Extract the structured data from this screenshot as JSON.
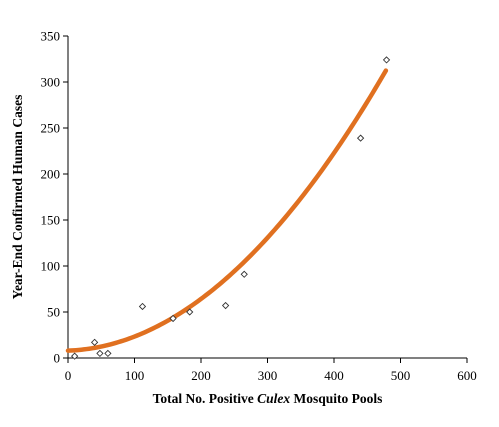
{
  "chart_data": {
    "type": "scatter",
    "title": "",
    "xlabel_parts": [
      {
        "text": "Total No. Positive ",
        "italic": false
      },
      {
        "text": "Culex",
        "italic": true
      },
      {
        "text": " Mosquito Pools",
        "italic": false
      }
    ],
    "ylabel": "Year-End Confirmed Human Cases",
    "xlim": [
      0,
      600
    ],
    "ylim": [
      0,
      350
    ],
    "xticks": [
      0,
      100,
      200,
      300,
      400,
      500,
      600
    ],
    "yticks": [
      0,
      50,
      100,
      150,
      200,
      250,
      300,
      350
    ],
    "grid": false,
    "legend": "none",
    "series": [
      {
        "kind": "points",
        "marker": "diamond",
        "points": [
          {
            "x": 10,
            "y": 2
          },
          {
            "x": 40,
            "y": 17
          },
          {
            "x": 48,
            "y": 5
          },
          {
            "x": 60,
            "y": 5
          },
          {
            "x": 112,
            "y": 56
          },
          {
            "x": 158,
            "y": 43
          },
          {
            "x": 183,
            "y": 50
          },
          {
            "x": 237,
            "y": 57
          },
          {
            "x": 265,
            "y": 91
          },
          {
            "x": 440,
            "y": 239
          },
          {
            "x": 479,
            "y": 324
          }
        ]
      },
      {
        "kind": "trendline",
        "fit": "polynomial-2",
        "color": "#E07020",
        "x_range": [
          0,
          478
        ],
        "coefficients": {
          "a": 0.00128,
          "b": 0.025,
          "c": 8
        }
      }
    ]
  }
}
